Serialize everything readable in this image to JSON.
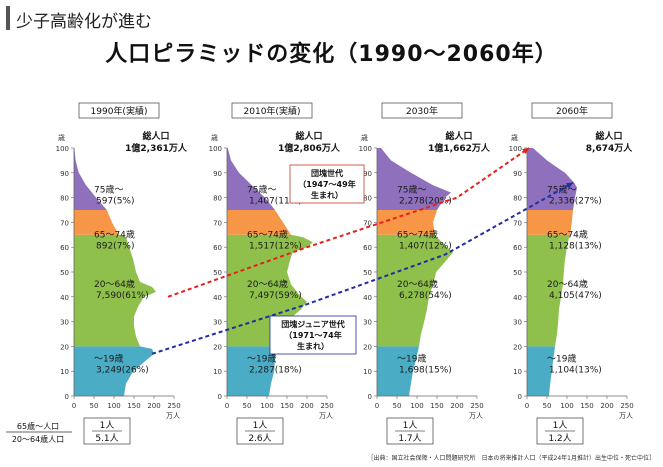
{
  "header": {
    "section_title": "少子高齢化が進む"
  },
  "main_title": "人口ピラミッドの変化（1990～2060年）",
  "colors": {
    "elderly75": "#8e70bd",
    "elderly65": "#f79646",
    "working": "#8fc04b",
    "young": "#4bacc6",
    "red_arrow": "#e8201a",
    "blue_arrow": "#1f2fa0"
  },
  "axis": {
    "y_unit": "歳",
    "x_unit": "万人",
    "y_ticks": [
      "0",
      "10",
      "20",
      "30",
      "40",
      "50",
      "60",
      "70",
      "80",
      "90",
      "100"
    ],
    "x_ticks": [
      "0",
      "50",
      "100",
      "150",
      "200",
      "250"
    ]
  },
  "ratio_legend": {
    "numerator": "65歳～人口",
    "denominator": "20～64歳人口"
  },
  "source_note": "［出典：国立社会保障・人口問題研究所　日本の将来推計人口（平成24年1月推計）出生中位・死亡中位］",
  "annotations": {
    "baby_boom": [
      "団塊世代",
      "（1947～49年",
      "生まれ）"
    ],
    "junior": [
      "団塊ジュニア世代",
      "（1971～74年",
      "生まれ）"
    ]
  },
  "chart_data": {
    "type": "population pyramid",
    "xlim": [
      0,
      250
    ],
    "ylim": [
      0,
      100
    ],
    "panels": [
      {
        "year_label": "1990年(実績)",
        "total_label": "総人口",
        "total_value": "1億2,361万人",
        "groups": [
          {
            "label": "75歳～",
            "value": "597(5%)"
          },
          {
            "label": "65～74歳",
            "value": "892(7%)"
          },
          {
            "label": "20～64歳",
            "value": "7,590(61%)"
          },
          {
            "label": "～19歳",
            "value": "3,249(26%)"
          }
        ],
        "ratio": [
          "1人",
          "5.1人"
        ],
        "profile": [
          [
            0,
            125
          ],
          [
            5,
            130
          ],
          [
            10,
            148
          ],
          [
            15,
            185
          ],
          [
            17,
            200
          ],
          [
            19,
            195
          ],
          [
            20,
            165
          ],
          [
            24,
            155
          ],
          [
            28,
            150
          ],
          [
            32,
            150
          ],
          [
            36,
            160
          ],
          [
            40,
            175
          ],
          [
            42,
            205
          ],
          [
            44,
            195
          ],
          [
            46,
            165
          ],
          [
            50,
            155
          ],
          [
            55,
            148
          ],
          [
            60,
            138
          ],
          [
            64,
            130
          ],
          [
            65,
            112
          ],
          [
            70,
            95
          ],
          [
            75,
            82
          ],
          [
            80,
            55
          ],
          [
            85,
            30
          ],
          [
            90,
            12
          ],
          [
            95,
            4
          ],
          [
            100,
            1
          ]
        ]
      },
      {
        "year_label": "2010年(実績)",
        "total_label": "総人口",
        "total_value": "1億2,806万人",
        "groups": [
          {
            "label": "75歳～",
            "value": "1,407(11%)"
          },
          {
            "label": "65～74歳",
            "value": "1,517(12%)"
          },
          {
            "label": "20～64歳",
            "value": "7,497(59%)"
          },
          {
            "label": "～19歳",
            "value": "2,287(18%)"
          }
        ],
        "ratio": [
          "1人",
          "2.6人"
        ],
        "profile": [
          [
            0,
            105
          ],
          [
            5,
            110
          ],
          [
            10,
            118
          ],
          [
            15,
            120
          ],
          [
            20,
            125
          ],
          [
            25,
            135
          ],
          [
            30,
            150
          ],
          [
            35,
            185
          ],
          [
            38,
            200
          ],
          [
            40,
            185
          ],
          [
            45,
            160
          ],
          [
            50,
            150
          ],
          [
            55,
            158
          ],
          [
            58,
            165
          ],
          [
            60,
            200
          ],
          [
            62,
            215
          ],
          [
            64,
            190
          ],
          [
            65,
            160
          ],
          [
            70,
            140
          ],
          [
            75,
            120
          ],
          [
            80,
            95
          ],
          [
            85,
            62
          ],
          [
            90,
            30
          ],
          [
            95,
            10
          ],
          [
            100,
            2
          ]
        ]
      },
      {
        "year_label": "2030年",
        "total_label": "総人口",
        "total_value": "1億1,662万人",
        "groups": [
          {
            "label": "75歳～",
            "value": "2,278(20%)"
          },
          {
            "label": "65～74歳",
            "value": "1,407(12%)"
          },
          {
            "label": "20～64歳",
            "value": "6,278(54%)"
          },
          {
            "label": "～19歳",
            "value": "1,698(15%)"
          }
        ],
        "ratio": [
          "1人",
          "1.7人"
        ],
        "profile": [
          [
            0,
            80
          ],
          [
            5,
            85
          ],
          [
            10,
            90
          ],
          [
            15,
            98
          ],
          [
            20,
            105
          ],
          [
            25,
            110
          ],
          [
            30,
            118
          ],
          [
            35,
            125
          ],
          [
            40,
            130
          ],
          [
            45,
            140
          ],
          [
            50,
            148
          ],
          [
            55,
            175
          ],
          [
            58,
            190
          ],
          [
            60,
            175
          ],
          [
            64,
            150
          ],
          [
            65,
            145
          ],
          [
            70,
            140
          ],
          [
            75,
            150
          ],
          [
            80,
            170
          ],
          [
            82,
            185
          ],
          [
            85,
            140
          ],
          [
            90,
            85
          ],
          [
            95,
            35
          ],
          [
            100,
            10
          ]
        ]
      },
      {
        "year_label": "2060年",
        "total_label": "総人口",
        "total_value": "8,674万人",
        "groups": [
          {
            "label": "75歳～",
            "value": "2,336(27%)"
          },
          {
            "label": "65～74歳",
            "value": "1,128(13%)"
          },
          {
            "label": "20～64歳",
            "value": "4,105(47%)"
          },
          {
            "label": "～19歳",
            "value": "1,104(13%)"
          }
        ],
        "ratio": [
          "1人",
          "1.2人"
        ],
        "profile": [
          [
            0,
            55
          ],
          [
            5,
            58
          ],
          [
            10,
            62
          ],
          [
            15,
            66
          ],
          [
            20,
            70
          ],
          [
            25,
            75
          ],
          [
            30,
            78
          ],
          [
            35,
            80
          ],
          [
            40,
            85
          ],
          [
            45,
            90
          ],
          [
            50,
            92
          ],
          [
            55,
            95
          ],
          [
            60,
            100
          ],
          [
            64,
            105
          ],
          [
            65,
            108
          ],
          [
            70,
            112
          ],
          [
            75,
            115
          ],
          [
            80,
            120
          ],
          [
            84,
            125
          ],
          [
            86,
            118
          ],
          [
            90,
            95
          ],
          [
            95,
            50
          ],
          [
            100,
            15
          ]
        ]
      }
    ]
  }
}
